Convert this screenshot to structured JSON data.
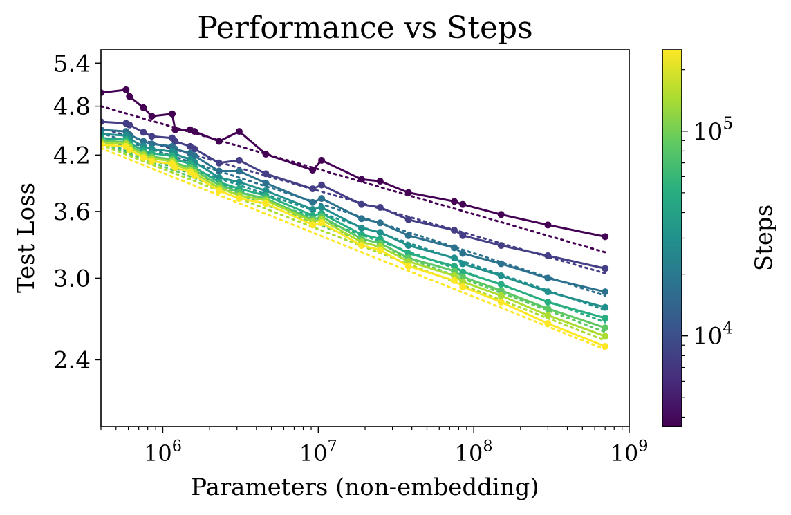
{
  "chart_data": {
    "type": "line",
    "title": "Performance vs Steps",
    "xlabel": "Parameters (non-embedding)",
    "ylabel": "Test Loss",
    "x_scale": "log",
    "y_scale": "log",
    "xlim": [
      400000,
      1000000000
    ],
    "ylim": [
      2.0,
      5.6
    ],
    "x_ticks": [
      {
        "value": 1000000,
        "base": "10",
        "exp": "6"
      },
      {
        "value": 10000000,
        "base": "10",
        "exp": "7"
      },
      {
        "value": 100000000,
        "base": "10",
        "exp": "8"
      },
      {
        "value": 1000000000,
        "base": "10",
        "exp": "9"
      }
    ],
    "y_ticks": [
      {
        "value": 2.4,
        "label": "2.4"
      },
      {
        "value": 3.0,
        "label": "3.0"
      },
      {
        "value": 3.6,
        "label": "3.6"
      },
      {
        "value": 4.2,
        "label": "4.2"
      },
      {
        "value": 4.8,
        "label": "4.8"
      },
      {
        "value": 5.4,
        "label": "5.4"
      }
    ],
    "grid": false,
    "colorbar": {
      "label": "Steps",
      "scale": "log",
      "range": [
        3600,
        250000
      ],
      "colormap": "viridis",
      "ticks": [
        {
          "value": 10000,
          "base": "10",
          "exp": "4"
        },
        {
          "value": 100000,
          "base": "10",
          "exp": "5"
        }
      ]
    },
    "x": [
      400000,
      580000,
      610000,
      750000,
      850000,
      1150000,
      1200000,
      1500000,
      1600000,
      2300000,
      3100000,
      4600000,
      9200000,
      10500000,
      19000000,
      25000000,
      38000000,
      75000000,
      85000000,
      150000000,
      300000000,
      700000000
    ],
    "series": [
      {
        "steps": 4000,
        "color": "#440154",
        "values": [
          4.98,
          5.02,
          4.93,
          4.78,
          4.67,
          4.7,
          4.5,
          4.5,
          4.48,
          4.36,
          4.48,
          4.21,
          4.03,
          4.14,
          3.93,
          3.91,
          3.79,
          3.7,
          3.67,
          3.57,
          3.47,
          3.36
        ],
        "fit": [
          4.8,
          3.22
        ]
      },
      {
        "steps": 7000,
        "color": "#433e85",
        "values": [
          4.6,
          4.58,
          4.56,
          4.47,
          4.42,
          4.4,
          4.36,
          4.3,
          4.27,
          4.11,
          4.14,
          3.99,
          3.83,
          3.87,
          3.67,
          3.64,
          3.52,
          3.42,
          3.37,
          3.28,
          3.19,
          3.08
        ],
        "fit": [
          4.52,
          3.04
        ]
      },
      {
        "steps": 12000,
        "color": "#2c718e",
        "values": [
          4.5,
          4.48,
          4.44,
          4.36,
          4.33,
          4.3,
          4.27,
          4.22,
          4.19,
          4.02,
          4.02,
          3.89,
          3.69,
          3.73,
          3.53,
          3.49,
          3.37,
          3.26,
          3.21,
          3.12,
          3.0,
          2.89
        ],
        "fit": [
          4.46,
          2.86
        ]
      },
      {
        "steps": 22000,
        "color": "#21908d",
        "values": [
          4.45,
          4.43,
          4.39,
          4.3,
          4.27,
          4.24,
          4.21,
          4.15,
          4.12,
          3.95,
          3.9,
          3.81,
          3.62,
          3.64,
          3.44,
          3.4,
          3.28,
          3.17,
          3.12,
          3.02,
          2.89,
          2.77
        ],
        "fit": [
          4.4,
          2.75
        ]
      },
      {
        "steps": 40000,
        "color": "#27ad81",
        "values": [
          4.4,
          4.38,
          4.34,
          4.25,
          4.22,
          4.19,
          4.15,
          4.1,
          4.06,
          3.9,
          3.83,
          3.76,
          3.56,
          3.58,
          3.38,
          3.34,
          3.21,
          3.1,
          3.05,
          2.95,
          2.81,
          2.69
        ],
        "fit": [
          4.36,
          2.66
        ]
      },
      {
        "steps": 70000,
        "color": "#5dc863",
        "values": [
          4.37,
          4.35,
          4.31,
          4.22,
          4.18,
          4.15,
          4.11,
          4.06,
          4.03,
          3.87,
          3.79,
          3.73,
          3.52,
          3.55,
          3.34,
          3.3,
          3.17,
          3.06,
          3.01,
          2.9,
          2.76,
          2.62
        ],
        "fit": [
          4.34,
          2.59
        ]
      },
      {
        "steps": 120000,
        "color": "#aadc32",
        "values": [
          4.35,
          4.33,
          4.29,
          4.2,
          4.16,
          4.13,
          4.09,
          4.03,
          4.0,
          3.84,
          3.76,
          3.71,
          3.5,
          3.52,
          3.31,
          3.27,
          3.14,
          3.02,
          2.97,
          2.86,
          2.71,
          2.56
        ],
        "fit": [
          4.32,
          2.53
        ]
      },
      {
        "steps": 220000,
        "color": "#fde725",
        "values": [
          4.32,
          4.3,
          4.26,
          4.17,
          4.13,
          4.1,
          4.06,
          4.01,
          3.97,
          3.81,
          3.73,
          3.68,
          3.47,
          3.49,
          3.28,
          3.24,
          3.1,
          2.98,
          2.93,
          2.81,
          2.65,
          2.49
        ],
        "fit": [
          4.28,
          2.47
        ]
      }
    ]
  }
}
